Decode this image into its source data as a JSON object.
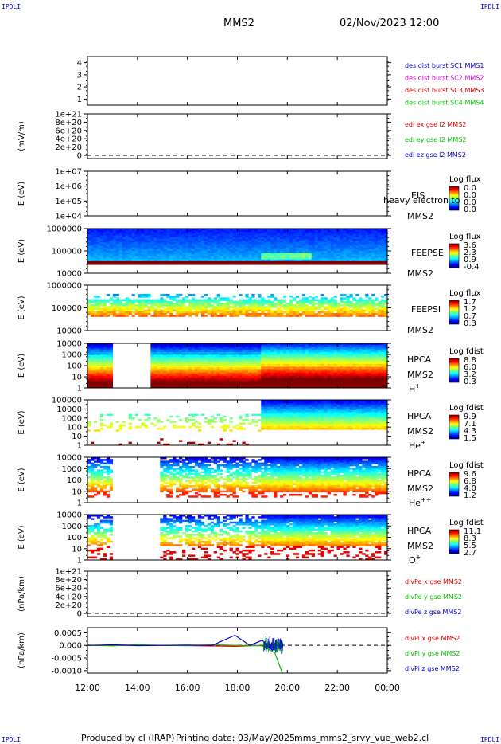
{
  "header": {
    "corner_label": "IPDLI",
    "title": "MMS2",
    "datetime": "02/Nov/2023 12:00"
  },
  "footer": {
    "produced_by": "Produced by cl (IRAP)",
    "printing_date": "Printing date: 03/May/2025",
    "script_name": "mms_mms2_srvy_vue_web2.cl"
  },
  "colors": {
    "mms1": "#0000c8",
    "mms2": "#c800c8",
    "mms3": "#c80000",
    "mms4": "#00c800",
    "red": "#e00000",
    "green": "#00c000",
    "blue": "#0000c8"
  },
  "chart_data": [
    {
      "id": "burst",
      "type": "line",
      "ylabel": "",
      "ylim": [
        0.5,
        4.5
      ],
      "yticks": [
        "1",
        "2",
        "3",
        "4"
      ],
      "legend": [
        {
          "text": "des dist burst SC1 MMS1",
          "color": "#0000c8"
        },
        {
          "text": "des dist burst SC2 MMS2",
          "color": "#c800c8"
        },
        {
          "text": "des dist burst SC3 MMS3",
          "color": "#c80000"
        },
        {
          "text": "des dist burst SC4 MMS4",
          "color": "#00c800"
        }
      ],
      "series": []
    },
    {
      "id": "edi",
      "type": "line",
      "ylabel": "(mV/m)",
      "yticks": [
        "1e+21",
        "8e+20",
        "6e+20",
        "4e+20",
        "2e+20",
        "0"
      ],
      "zero_line": true,
      "legend": [
        {
          "text": "edi ex gse l2 MMS2",
          "color": "#e00000"
        },
        {
          "text": "edi ey gse l2 MMS2",
          "color": "#00c000"
        },
        {
          "text": "edi ez gse l2 MMS2",
          "color": "#0000c8"
        }
      ],
      "series": []
    },
    {
      "id": "eis",
      "type": "heatmap",
      "ylabel": "E (eV)",
      "yticks": [
        "1e+07",
        "1e+06",
        "1e+05",
        "1e+04"
      ],
      "instrument": [
        "EIS",
        "MMS2"
      ],
      "overlay_text": "heavy electron to",
      "colorbar": {
        "title": "Log flux",
        "ticks": [
          "0.0",
          "0.0",
          "0.0",
          "0.0"
        ]
      }
    },
    {
      "id": "feepse",
      "type": "heatmap",
      "ylabel": "E (eV)",
      "yticks": [
        "1000000",
        "100000",
        "10000"
      ],
      "instrument": [
        "FEEPSE",
        "MMS2"
      ],
      "colorbar": {
        "title": "Log flux",
        "ticks": [
          "3.6",
          "2.3",
          "0.9",
          "-0.4"
        ]
      }
    },
    {
      "id": "feepsi",
      "type": "heatmap",
      "ylabel": "E (eV)",
      "yticks": [
        "1000000",
        "100000",
        "10000"
      ],
      "instrument": [
        "FEEPSI",
        "MMS2"
      ],
      "colorbar": {
        "title": "Log flux",
        "ticks": [
          "1.7",
          "1.2",
          "0.7",
          "0.3"
        ]
      }
    },
    {
      "id": "hpca_h",
      "type": "heatmap",
      "ylabel": "E (eV)",
      "yticks": [
        "10000",
        "1000",
        "100",
        "10",
        "1"
      ],
      "instrument": [
        "HPCA",
        "MMS2"
      ],
      "species": "H",
      "species_charge": "+",
      "gap_hours": [
        13.0,
        14.5
      ],
      "colorbar": {
        "title": "Log fdist",
        "ticks": [
          "8.8",
          "6.0",
          "3.2",
          "0.3"
        ]
      }
    },
    {
      "id": "hpca_he",
      "type": "heatmap",
      "ylabel": "E (eV)",
      "yticks": [
        "100000",
        "10000",
        "1000",
        "100",
        "10",
        "1"
      ],
      "instrument": [
        "HPCA",
        "MMS2"
      ],
      "species": "He",
      "species_charge": "+",
      "colorbar": {
        "title": "Log fdist",
        "ticks": [
          "9.9",
          "7.1",
          "4.3",
          "1.5"
        ]
      }
    },
    {
      "id": "hpca_hepp",
      "type": "heatmap",
      "ylabel": "E (eV)",
      "yticks": [
        "10000",
        "1000",
        "100",
        "10",
        "1"
      ],
      "instrument": [
        "HPCA",
        "MMS2"
      ],
      "species": "He",
      "species_charge": "++",
      "gap_hours": [
        13.0,
        14.9
      ],
      "colorbar": {
        "title": "Log fdist",
        "ticks": [
          "9.6",
          "6.8",
          "4.0",
          "1.2"
        ]
      }
    },
    {
      "id": "hpca_o",
      "type": "heatmap",
      "ylabel": "E (eV)",
      "yticks": [
        "10000",
        "1000",
        "100",
        "10",
        "1"
      ],
      "instrument": [
        "HPCA",
        "MMS2"
      ],
      "species": "O",
      "species_charge": "+",
      "gap_hours": [
        13.0,
        14.9
      ],
      "colorbar": {
        "title": "Log fdist",
        "ticks": [
          "11.1",
          "8.3",
          "5.5",
          "2.7"
        ]
      }
    },
    {
      "id": "divpe",
      "type": "line",
      "ylabel": "(nPa/km)",
      "yticks": [
        "1e+21",
        "8e+20",
        "6e+20",
        "4e+20",
        "2e+20",
        "0"
      ],
      "zero_line": true,
      "legend": [
        {
          "text": "divPe x gse MMS2",
          "color": "#e00000"
        },
        {
          "text": "divPe y gse MMS2",
          "color": "#00c000"
        },
        {
          "text": "divPe z gse MMS2",
          "color": "#0000c8"
        }
      ],
      "series": []
    },
    {
      "id": "divpi",
      "type": "line",
      "ylabel": "(nPa/km)",
      "yticks": [
        "0.0005",
        "0.000",
        "-0.0005",
        "-0.0010"
      ],
      "ylim": [
        -0.0011,
        0.0007
      ],
      "zero_line": true,
      "legend": [
        {
          "text": "divPi x gse MMS2",
          "color": "#e00000"
        },
        {
          "text": "divPi y gse MMS2",
          "color": "#00c000"
        },
        {
          "text": "divPi z gse MMS2",
          "color": "#0000c8"
        }
      ],
      "series": [
        {
          "name": "divPi x gse MMS2",
          "color": "#e00000",
          "x": [
            12.0,
            14.0,
            16.0,
            17.9,
            19.0,
            19.5,
            19.8
          ],
          "y": [
            0.0,
            1e-05,
            -1e-05,
            -4e-05,
            0.0,
            3e-05,
            0.0
          ]
        },
        {
          "name": "divPi y gse MMS2",
          "color": "#00c000",
          "x": [
            12.0,
            13.0,
            14.0,
            15.0,
            16.0,
            17.0,
            18.0,
            19.0,
            19.5,
            19.8
          ],
          "y": [
            1e-05,
            -2e-05,
            2e-05,
            0.0,
            -1e-05,
            2e-05,
            0.0,
            -2e-05,
            -0.0003,
            -0.0011
          ]
        },
        {
          "name": "divPi z gse MMS2",
          "color": "#0000c8",
          "x": [
            12.0,
            13.0,
            14.0,
            15.0,
            16.0,
            17.0,
            17.9,
            18.5,
            19.0,
            19.4,
            19.8
          ],
          "y": [
            0.0,
            2e-05,
            -1e-05,
            0.0,
            1e-05,
            0.0,
            0.0004,
            0.0,
            0.0002,
            -0.0002,
            0.0001
          ]
        }
      ]
    }
  ],
  "time_axis": {
    "labels": [
      "12:00",
      "14:00",
      "16:00",
      "18:00",
      "20:00",
      "22:00",
      "00:00"
    ],
    "range_hours": [
      12,
      24
    ]
  }
}
